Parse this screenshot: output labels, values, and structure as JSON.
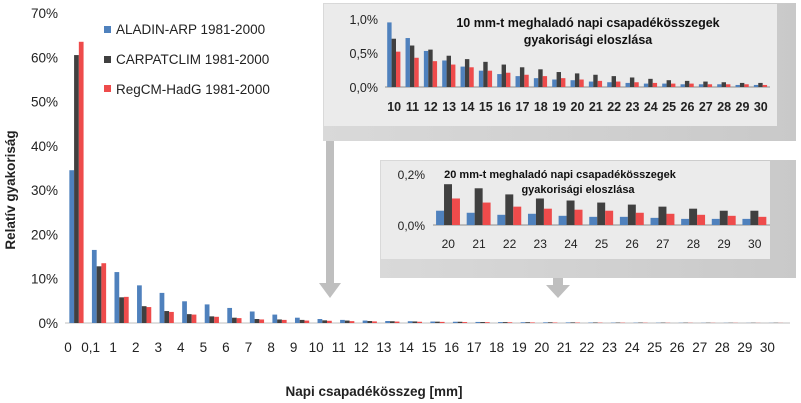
{
  "chart_data": [
    {
      "type": "bar",
      "title": "",
      "xlabel": "Napi csapadékösszeg [mm]",
      "ylabel": "Relatív gyakoriság",
      "ylim": [
        0,
        70
      ],
      "yticks": [
        "0%",
        "10%",
        "20%",
        "30%",
        "40%",
        "50%",
        "60%",
        "70%"
      ],
      "categories": [
        "0",
        "0,1",
        "1",
        "2",
        "3",
        "4",
        "5",
        "6",
        "7",
        "8",
        "9",
        "10",
        "11",
        "12",
        "13",
        "14",
        "15",
        "16",
        "17",
        "18",
        "19",
        "20",
        "21",
        "22",
        "23",
        "24",
        "25",
        "26",
        "27",
        "28",
        "29",
        "30"
      ],
      "legend_position": "top-left",
      "series": [
        {
          "name": "ALADIN-ARP 1981-2000",
          "color": "#4f81bd",
          "values": [
            34.5,
            16.5,
            11.5,
            8.5,
            6.8,
            4.9,
            4.2,
            3.4,
            2.6,
            1.9,
            1.2,
            0.9,
            0.7,
            0.55,
            0.45,
            0.4,
            0.33,
            0.28,
            0.24,
            0.2,
            0.17,
            0.15,
            0.13,
            0.1,
            0.08,
            0.07,
            0.06,
            0.05,
            0.04,
            0.04,
            0.03,
            0.03
          ]
        },
        {
          "name": "CARPATCLIM 1981-2000",
          "color": "#404040",
          "values": [
            60.5,
            12.8,
            5.8,
            3.8,
            2.7,
            2.0,
            1.5,
            1.2,
            0.9,
            0.8,
            0.7,
            0.6,
            0.55,
            0.45,
            0.4,
            0.35,
            0.3,
            0.28,
            0.22,
            0.2,
            0.18,
            0.16,
            0.14,
            0.12,
            0.1,
            0.09,
            0.08,
            0.07,
            0.06,
            0.05,
            0.05,
            0.05
          ]
        },
        {
          "name": "RegCM-HadG 1981-2000",
          "color": "#ee4b4b",
          "values": [
            63.5,
            13.5,
            5.9,
            3.6,
            2.5,
            1.9,
            1.4,
            1.1,
            0.8,
            0.7,
            0.55,
            0.5,
            0.42,
            0.36,
            0.32,
            0.28,
            0.25,
            0.21,
            0.18,
            0.16,
            0.13,
            0.11,
            0.1,
            0.08,
            0.07,
            0.06,
            0.05,
            0.05,
            0.04,
            0.04,
            0.03,
            0.03
          ]
        }
      ]
    },
    {
      "type": "bar",
      "title": "10 mm-t meghaladó napi csapadékösszegek gyakorisági eloszlása",
      "title_lines": [
        "10 mm-t meghaladó napi csapadékösszegek",
        "gyakorisági eloszlása"
      ],
      "ylim": [
        0,
        1.0
      ],
      "yticks": [
        "0,0%",
        "0,5%",
        "1,0%"
      ],
      "categories": [
        "10",
        "11",
        "12",
        "13",
        "14",
        "15",
        "16",
        "17",
        "18",
        "19",
        "20",
        "21",
        "22",
        "23",
        "24",
        "25",
        "26",
        "27",
        "28",
        "29",
        "30"
      ],
      "series": [
        {
          "name": "ALADIN-ARP 1981-2000",
          "values": [
            0.95,
            0.72,
            0.53,
            0.39,
            0.3,
            0.24,
            0.19,
            0.16,
            0.13,
            0.11,
            0.1,
            0.08,
            0.07,
            0.06,
            0.05,
            0.05,
            0.04,
            0.04,
            0.04,
            0.03,
            0.03
          ]
        },
        {
          "name": "CARPATCLIM 1981-2000",
          "values": [
            0.71,
            0.61,
            0.55,
            0.46,
            0.41,
            0.37,
            0.33,
            0.29,
            0.26,
            0.22,
            0.2,
            0.18,
            0.16,
            0.14,
            0.12,
            0.1,
            0.09,
            0.08,
            0.07,
            0.06,
            0.06
          ]
        },
        {
          "name": "RegCM-HadG 1981-2000",
          "values": [
            0.52,
            0.43,
            0.38,
            0.33,
            0.29,
            0.24,
            0.21,
            0.18,
            0.16,
            0.13,
            0.11,
            0.09,
            0.08,
            0.07,
            0.06,
            0.05,
            0.05,
            0.04,
            0.04,
            0.04,
            0.03
          ]
        }
      ]
    },
    {
      "type": "bar",
      "title": "20 mm-t meghaladó napi csapadékösszegek gyakorisági eloszlása",
      "title_lines": [
        "20 mm-t meghaladó napi csapadékösszegek",
        "gyakorisági eloszlása"
      ],
      "ylim": [
        0,
        0.25
      ],
      "yticks": [
        "0,0%",
        "0,2%"
      ],
      "categories": [
        "20",
        "21",
        "22",
        "23",
        "24",
        "25",
        "26",
        "27",
        "28",
        "29",
        "30"
      ],
      "series": [
        {
          "name": "ALADIN-ARP 1981-2000",
          "values": [
            0.07,
            0.06,
            0.05,
            0.055,
            0.045,
            0.04,
            0.04,
            0.035,
            0.03,
            0.03,
            0.03
          ]
        },
        {
          "name": "CARPATCLIM 1981-2000",
          "values": [
            0.2,
            0.18,
            0.15,
            0.13,
            0.12,
            0.11,
            0.1,
            0.09,
            0.08,
            0.07,
            0.07
          ]
        },
        {
          "name": "RegCM-HadG 1981-2000",
          "values": [
            0.13,
            0.11,
            0.09,
            0.08,
            0.075,
            0.07,
            0.06,
            0.055,
            0.05,
            0.045,
            0.04
          ]
        }
      ]
    }
  ]
}
